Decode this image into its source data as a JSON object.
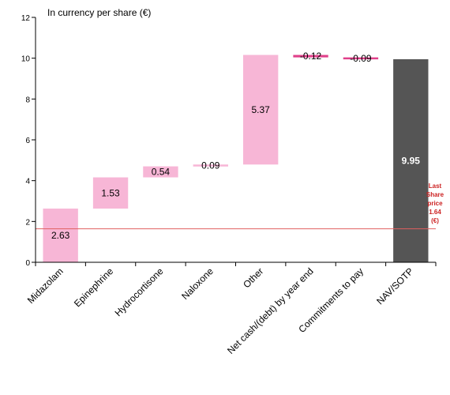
{
  "chart_data": {
    "type": "bar",
    "subtype": "waterfall",
    "ylabel": "In currency per share (€)",
    "ylim": [
      0,
      12
    ],
    "yticks": [
      0,
      2,
      4,
      6,
      8,
      10,
      12
    ],
    "categories": [
      "Midazolam",
      "Epinephrine",
      "Hydrocortisone",
      "Naloxone",
      "Other",
      "Net cash/(debt) by year end",
      "Commitments to pay",
      "NAV/SOTP"
    ],
    "values": [
      2.63,
      1.53,
      0.54,
      0.09,
      5.37,
      -0.12,
      -0.09,
      9.95
    ],
    "value_labels": [
      "2.63",
      "1.53",
      "0.54",
      "0.09",
      "5.37",
      "-0.12",
      "-0.09",
      "9.95"
    ],
    "is_total": [
      false,
      false,
      false,
      false,
      false,
      false,
      false,
      true
    ],
    "reference_line": {
      "value": 1.64,
      "label_lines": [
        "Last",
        "Share",
        "price",
        "1.64",
        "(€)"
      ]
    },
    "colors": {
      "increase": "#f7b6d6",
      "decrease": "#e0408a",
      "total": "#555555",
      "reference": "#e06060",
      "axis": "#000000"
    },
    "grid": false,
    "legend": "none"
  }
}
